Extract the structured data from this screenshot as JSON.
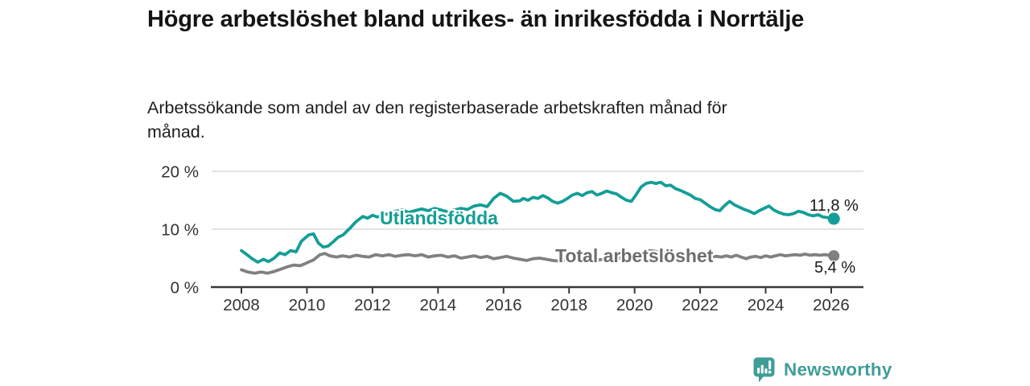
{
  "title": "Högre arbetslöshet bland utrikes- än inrikesfödda i Norrtälje",
  "subtitle": "Arbetssökande som andel av den registerbaserade arbetskraften månad för månad.",
  "branding": {
    "logo_text": "Newsworthy",
    "logo_icon": "bar-chart-speech-bubble",
    "logo_color": "#3F9D98"
  },
  "colors": {
    "accent_teal": "#149E96",
    "line_gray": "#808080",
    "gray_label": "#6D6D6D",
    "axis": "#3A3A3A",
    "gridline": "#D8D8D8",
    "tick_text": "#333333"
  },
  "chart_data": {
    "type": "line",
    "grid": "horizontal",
    "legend_position": "inline-labels",
    "x_range": [
      2007.15,
      2027.0
    ],
    "y_range": [
      0,
      20
    ],
    "y_unit": "%",
    "x_axis": {
      "ticks": [
        {
          "value": 2008,
          "label": "2008"
        },
        {
          "value": 2010,
          "label": "2010"
        },
        {
          "value": 2012,
          "label": "2012"
        },
        {
          "value": 2014,
          "label": "2014"
        },
        {
          "value": 2016,
          "label": "2016"
        },
        {
          "value": 2018,
          "label": "2018"
        },
        {
          "value": 2020,
          "label": "2020"
        },
        {
          "value": 2022,
          "label": "2022"
        },
        {
          "value": 2024,
          "label": "2024"
        },
        {
          "value": 2026,
          "label": "2026"
        }
      ]
    },
    "y_axis": {
      "ticks": [
        {
          "value": 0,
          "label": "0 %"
        },
        {
          "value": 10,
          "label": "10 %"
        },
        {
          "value": 20,
          "label": "20 %"
        }
      ]
    },
    "series": [
      {
        "id": "utlandsfodda",
        "name": "Utlandsfödda",
        "color": "#149E96",
        "end_label": "11,8 %",
        "end_value": 11.8,
        "points": [
          [
            2008.0,
            6.3
          ],
          [
            2008.17,
            5.6
          ],
          [
            2008.33,
            4.9
          ],
          [
            2008.5,
            4.3
          ],
          [
            2008.67,
            4.8
          ],
          [
            2008.83,
            4.4
          ],
          [
            2009.0,
            5.0
          ],
          [
            2009.17,
            5.9
          ],
          [
            2009.33,
            5.6
          ],
          [
            2009.5,
            6.3
          ],
          [
            2009.67,
            6.1
          ],
          [
            2009.83,
            7.9
          ],
          [
            2010.05,
            9.0
          ],
          [
            2010.2,
            9.2
          ],
          [
            2010.35,
            7.6
          ],
          [
            2010.5,
            6.9
          ],
          [
            2010.65,
            7.1
          ],
          [
            2010.8,
            7.8
          ],
          [
            2010.95,
            8.6
          ],
          [
            2011.1,
            9.0
          ],
          [
            2011.3,
            10.1
          ],
          [
            2011.5,
            11.3
          ],
          [
            2011.7,
            12.2
          ],
          [
            2011.85,
            11.9
          ],
          [
            2012.0,
            12.4
          ],
          [
            2012.15,
            12.1
          ],
          [
            2012.3,
            12.4
          ],
          [
            2012.5,
            12.7
          ],
          [
            2012.7,
            13.1
          ],
          [
            2012.9,
            13.3
          ],
          [
            2013.1,
            12.9
          ],
          [
            2013.3,
            13.2
          ],
          [
            2013.5,
            13.5
          ],
          [
            2013.7,
            13.2
          ],
          [
            2013.9,
            13.6
          ],
          [
            2014.1,
            13.3
          ],
          [
            2014.3,
            13.0
          ],
          [
            2014.5,
            13.3
          ],
          [
            2014.7,
            13.6
          ],
          [
            2014.9,
            13.4
          ],
          [
            2015.1,
            14.0
          ],
          [
            2015.3,
            14.2
          ],
          [
            2015.5,
            13.9
          ],
          [
            2015.7,
            15.3
          ],
          [
            2015.9,
            16.2
          ],
          [
            2016.1,
            15.7
          ],
          [
            2016.3,
            14.8
          ],
          [
            2016.5,
            14.9
          ],
          [
            2016.6,
            15.3
          ],
          [
            2016.75,
            15.0
          ],
          [
            2016.9,
            15.5
          ],
          [
            2017.05,
            15.3
          ],
          [
            2017.2,
            15.8
          ],
          [
            2017.35,
            15.4
          ],
          [
            2017.5,
            14.8
          ],
          [
            2017.65,
            14.5
          ],
          [
            2017.8,
            14.8
          ],
          [
            2017.95,
            15.3
          ],
          [
            2018.1,
            15.9
          ],
          [
            2018.25,
            16.2
          ],
          [
            2018.4,
            15.8
          ],
          [
            2018.55,
            16.3
          ],
          [
            2018.7,
            16.5
          ],
          [
            2018.85,
            15.9
          ],
          [
            2019.0,
            16.2
          ],
          [
            2019.15,
            16.6
          ],
          [
            2019.3,
            16.3
          ],
          [
            2019.45,
            16.1
          ],
          [
            2019.6,
            15.5
          ],
          [
            2019.75,
            15.0
          ],
          [
            2019.9,
            14.8
          ],
          [
            2020.05,
            16.0
          ],
          [
            2020.2,
            17.3
          ],
          [
            2020.35,
            17.9
          ],
          [
            2020.5,
            18.1
          ],
          [
            2020.65,
            17.9
          ],
          [
            2020.8,
            18.1
          ],
          [
            2020.95,
            17.5
          ],
          [
            2021.1,
            17.6
          ],
          [
            2021.25,
            17.0
          ],
          [
            2021.4,
            16.7
          ],
          [
            2021.55,
            16.3
          ],
          [
            2021.7,
            15.9
          ],
          [
            2021.85,
            15.3
          ],
          [
            2022.0,
            15.1
          ],
          [
            2022.15,
            14.5
          ],
          [
            2022.3,
            13.9
          ],
          [
            2022.45,
            13.4
          ],
          [
            2022.6,
            13.2
          ],
          [
            2022.75,
            14.1
          ],
          [
            2022.9,
            14.8
          ],
          [
            2023.05,
            14.2
          ],
          [
            2023.2,
            13.8
          ],
          [
            2023.35,
            13.4
          ],
          [
            2023.5,
            13.1
          ],
          [
            2023.65,
            12.7
          ],
          [
            2023.8,
            13.2
          ],
          [
            2023.95,
            13.6
          ],
          [
            2024.1,
            14.0
          ],
          [
            2024.25,
            13.3
          ],
          [
            2024.4,
            12.9
          ],
          [
            2024.55,
            12.6
          ],
          [
            2024.7,
            12.5
          ],
          [
            2024.85,
            12.7
          ],
          [
            2025.0,
            13.1
          ],
          [
            2025.15,
            12.9
          ],
          [
            2025.3,
            12.5
          ],
          [
            2025.45,
            12.3
          ],
          [
            2025.6,
            12.5
          ],
          [
            2025.75,
            12.1
          ],
          [
            2025.9,
            12.0
          ],
          [
            2026.08,
            11.8
          ]
        ]
      },
      {
        "id": "total",
        "name": "Total arbetslöshet",
        "color": "#808080",
        "end_label": "5,4 %",
        "end_value": 5.4,
        "points": [
          [
            2008.0,
            3.0
          ],
          [
            2008.2,
            2.6
          ],
          [
            2008.4,
            2.4
          ],
          [
            2008.6,
            2.6
          ],
          [
            2008.8,
            2.4
          ],
          [
            2009.0,
            2.7
          ],
          [
            2009.2,
            3.1
          ],
          [
            2009.4,
            3.5
          ],
          [
            2009.6,
            3.8
          ],
          [
            2009.8,
            3.7
          ],
          [
            2010.0,
            4.2
          ],
          [
            2010.2,
            4.7
          ],
          [
            2010.4,
            5.6
          ],
          [
            2010.55,
            5.8
          ],
          [
            2010.7,
            5.4
          ],
          [
            2010.9,
            5.2
          ],
          [
            2011.1,
            5.4
          ],
          [
            2011.3,
            5.2
          ],
          [
            2011.5,
            5.5
          ],
          [
            2011.7,
            5.3
          ],
          [
            2011.9,
            5.2
          ],
          [
            2012.1,
            5.6
          ],
          [
            2012.3,
            5.4
          ],
          [
            2012.5,
            5.6
          ],
          [
            2012.7,
            5.3
          ],
          [
            2012.9,
            5.5
          ],
          [
            2013.1,
            5.6
          ],
          [
            2013.3,
            5.4
          ],
          [
            2013.5,
            5.6
          ],
          [
            2013.7,
            5.2
          ],
          [
            2013.9,
            5.4
          ],
          [
            2014.1,
            5.5
          ],
          [
            2014.3,
            5.2
          ],
          [
            2014.5,
            5.4
          ],
          [
            2014.7,
            5.0
          ],
          [
            2014.9,
            5.2
          ],
          [
            2015.1,
            5.4
          ],
          [
            2015.3,
            5.1
          ],
          [
            2015.5,
            5.3
          ],
          [
            2015.7,
            4.9
          ],
          [
            2015.9,
            5.1
          ],
          [
            2016.1,
            5.3
          ],
          [
            2016.3,
            5.0
          ],
          [
            2016.5,
            4.8
          ],
          [
            2016.7,
            4.6
          ],
          [
            2016.9,
            4.9
          ],
          [
            2017.1,
            5.0
          ],
          [
            2017.3,
            4.8
          ],
          [
            2017.5,
            4.6
          ],
          [
            2017.7,
            4.5
          ],
          [
            2017.9,
            4.7
          ],
          [
            2018.1,
            4.8
          ],
          [
            2018.3,
            4.6
          ],
          [
            2018.5,
            4.5
          ],
          [
            2018.7,
            4.6
          ],
          [
            2018.9,
            4.7
          ],
          [
            2019.1,
            4.8
          ],
          [
            2019.3,
            4.9
          ],
          [
            2019.5,
            5.0
          ],
          [
            2019.7,
            5.1
          ],
          [
            2019.9,
            5.3
          ],
          [
            2020.1,
            5.8
          ],
          [
            2020.3,
            6.2
          ],
          [
            2020.5,
            6.3
          ],
          [
            2020.7,
            6.1
          ],
          [
            2020.9,
            6.0
          ],
          [
            2021.1,
            5.9
          ],
          [
            2021.3,
            5.7
          ],
          [
            2021.5,
            5.5
          ],
          [
            2021.7,
            5.3
          ],
          [
            2021.9,
            5.2
          ],
          [
            2022.1,
            5.1
          ],
          [
            2022.3,
            5.2
          ],
          [
            2022.5,
            5.3
          ],
          [
            2022.65,
            5.2
          ],
          [
            2022.8,
            5.4
          ],
          [
            2022.95,
            5.2
          ],
          [
            2023.1,
            5.5
          ],
          [
            2023.25,
            5.2
          ],
          [
            2023.4,
            4.9
          ],
          [
            2023.55,
            5.2
          ],
          [
            2023.7,
            5.3
          ],
          [
            2023.85,
            5.1
          ],
          [
            2024.0,
            5.4
          ],
          [
            2024.15,
            5.2
          ],
          [
            2024.3,
            5.4
          ],
          [
            2024.45,
            5.6
          ],
          [
            2024.6,
            5.4
          ],
          [
            2024.75,
            5.5
          ],
          [
            2024.9,
            5.6
          ],
          [
            2025.05,
            5.5
          ],
          [
            2025.2,
            5.7
          ],
          [
            2025.35,
            5.5
          ],
          [
            2025.5,
            5.6
          ],
          [
            2025.65,
            5.5
          ],
          [
            2025.8,
            5.6
          ],
          [
            2025.95,
            5.5
          ],
          [
            2026.08,
            5.4
          ]
        ]
      }
    ]
  }
}
